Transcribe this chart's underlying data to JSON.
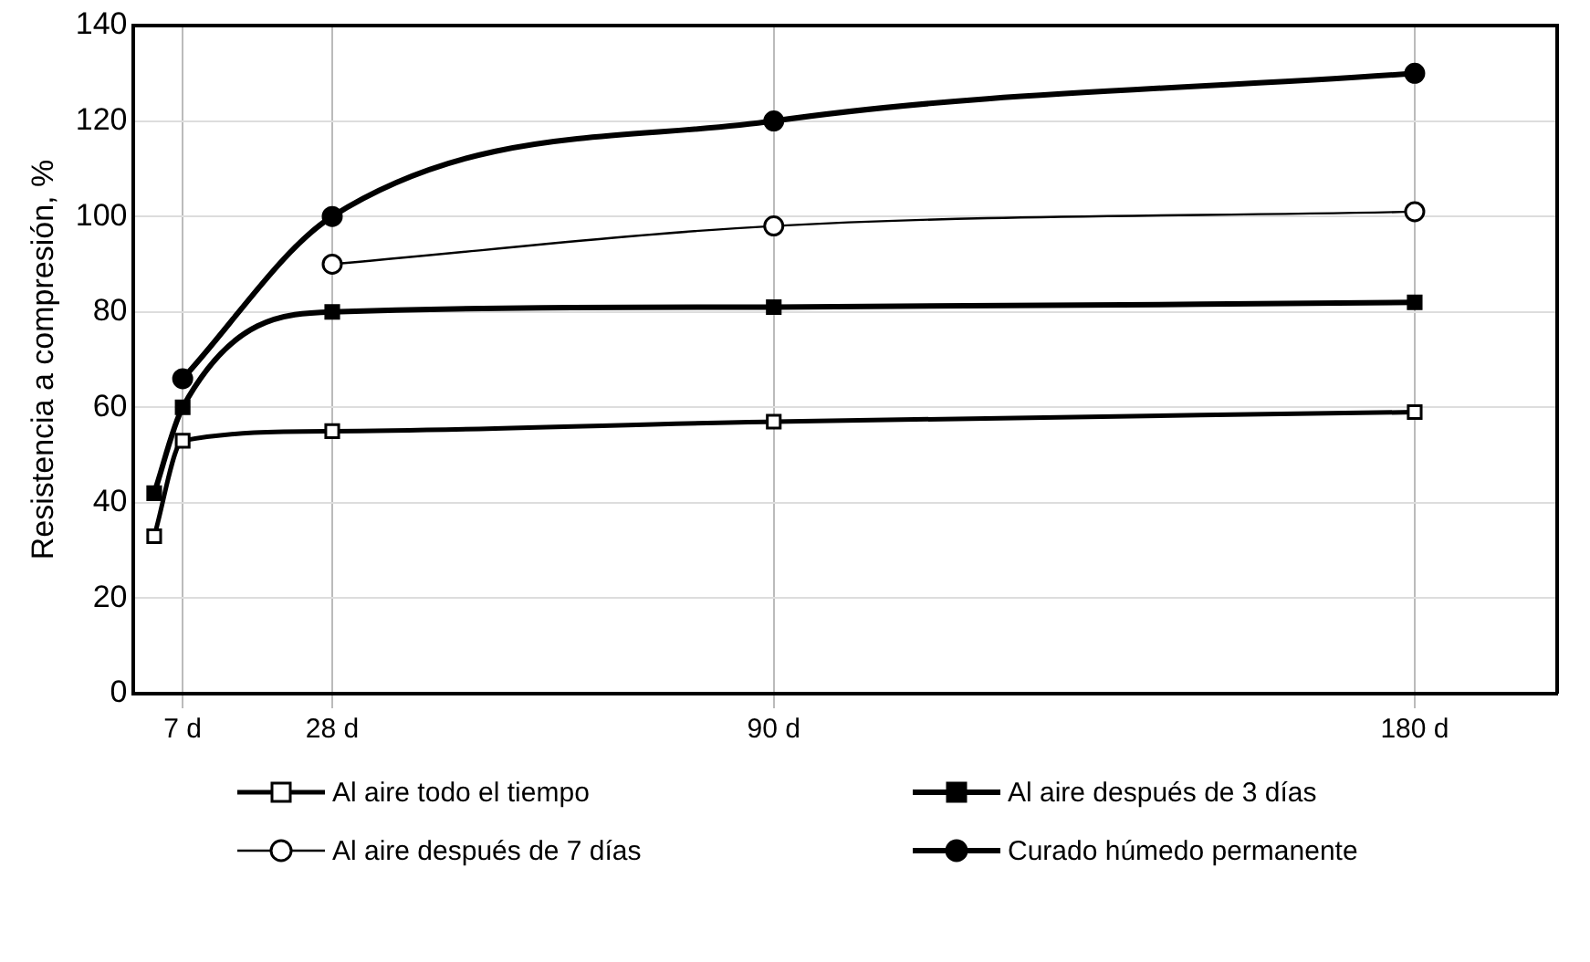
{
  "chart_data": {
    "type": "line",
    "ylabel": "Resistencia a compresión, %",
    "x": [
      3,
      7,
      28,
      90,
      180
    ],
    "xlim": [
      0,
      200
    ],
    "xticks": [
      {
        "value": 7,
        "label": "7 d"
      },
      {
        "value": 28,
        "label": "28 d"
      },
      {
        "value": 90,
        "label": "90 d"
      },
      {
        "value": 180,
        "label": "180 d"
      }
    ],
    "ylim": [
      0,
      140
    ],
    "yticks": [
      0,
      20,
      40,
      60,
      80,
      100,
      120,
      140
    ],
    "grid": true,
    "legend": "bottom",
    "line_style": "solid",
    "series": [
      {
        "name": "Al aire todo el tiempo",
        "color": "#000000",
        "marker": "square",
        "values": [
          33,
          53,
          55,
          57,
          59
        ]
      },
      {
        "name": "Al aire después de 3 días",
        "color": "#000000",
        "marker": "square",
        "values": [
          42,
          60,
          80,
          81,
          82
        ]
      },
      {
        "name": "Al aire después de 7 días",
        "color": "#000000",
        "marker": "circle",
        "values": [
          null,
          null,
          90,
          98,
          101
        ]
      },
      {
        "name": "Curado húmedo permanente",
        "color": "#000000",
        "marker": "circle",
        "values": [
          null,
          66,
          100,
          120,
          130
        ]
      }
    ]
  }
}
